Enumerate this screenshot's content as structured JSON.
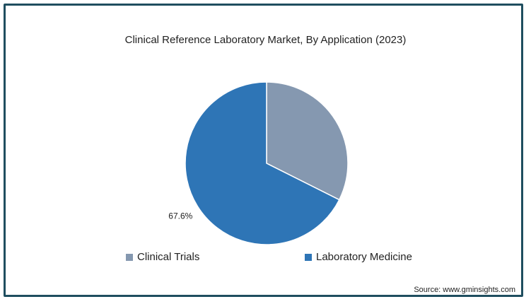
{
  "chart_data": {
    "type": "pie",
    "title": "Clinical Reference Laboratory Market, By Application (2023)",
    "categories": [
      "Clinical Trials",
      "Laboratory Medicine"
    ],
    "values": [
      32.4,
      67.6
    ],
    "data_labels": [
      "",
      "67.6%"
    ],
    "colors": [
      "#8598b0",
      "#2e75b6"
    ],
    "legend_position": "bottom"
  },
  "legend": {
    "items": [
      "Clinical Trials",
      "Laboratory Medicine"
    ]
  },
  "source": "Source: www.gminsights.com"
}
